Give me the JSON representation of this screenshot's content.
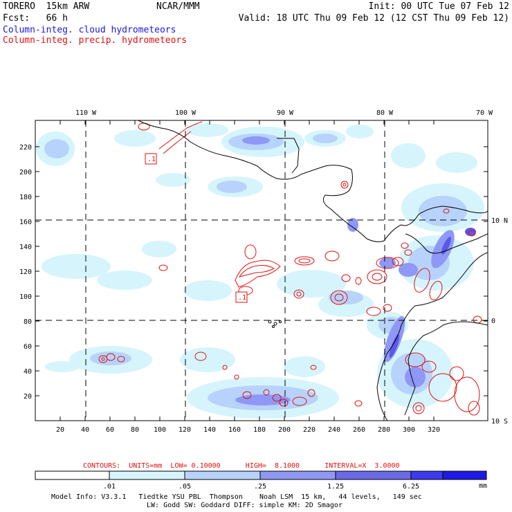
{
  "header": {
    "model": "TORERO  15km ARW",
    "center": "NCAR/MMM",
    "init": "Init: 00 UTC Tue 07 Feb 12",
    "fcst": "Fcst:   66 h",
    "valid": "Valid: 18 UTC Thu 09 Feb 12 (12 CST Thu 09 Feb 12)",
    "field_cloud": "Column-integ. cloud hydrometeors",
    "field_precip": "Column-integ. precip. hydrometeors"
  },
  "colors": {
    "cloud_text": "#1a1ad6",
    "precip_text": "#e01010",
    "contour": "#e01010",
    "coast": "#000000"
  },
  "map": {
    "lon_labels": [
      "110 W",
      "100 W",
      "90 W",
      "80 W",
      "70 W"
    ],
    "lat_labels": [
      "10 N",
      "0",
      "10 S"
    ],
    "x_ticks": [
      "20",
      "40",
      "60",
      "80",
      "100",
      "120",
      "140",
      "160",
      "180",
      "200",
      "220",
      "240",
      "260",
      "280",
      "300",
      "320"
    ],
    "y_ticks": [
      "20",
      "40",
      "60",
      "80",
      "100",
      "120",
      "140",
      "160",
      "180",
      "200",
      "220"
    ],
    "low_markers": [
      ".1",
      ".1"
    ]
  },
  "footer": {
    "contours": "CONTOURS:  UNITS=mm  LOW= 0.10000      HIGH=  8.1000      INTERVAL=X  3.0000",
    "colorbar_labels": [
      ".01",
      ".05",
      ".25",
      "1.25",
      "6.25"
    ],
    "colorbar_unit": "mm",
    "colorbar_colors": [
      "#ffffff",
      "#d6f4fb",
      "#b7d3fb",
      "#8f98f5",
      "#6a6ae8",
      "#3d3af0",
      "#1f1ae6"
    ],
    "model_info_1": "Model Info: V3.3.1   Tiedtke YSU PBL  Thompson    Noah LSM  15 km,   44 levels,   149 sec",
    "model_info_2": "LW: Godd SW: Goddard DIFF: simple KM: 2D Smagor"
  }
}
